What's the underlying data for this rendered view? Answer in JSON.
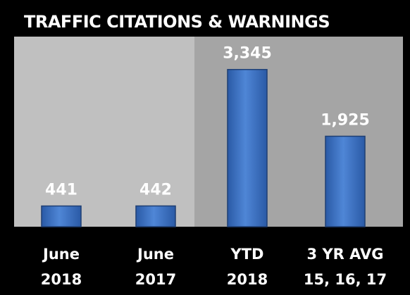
{
  "chart_data": {
    "type": "bar",
    "title": "TRAFFIC CITATIONS & WARNINGS",
    "categories": [
      [
        "June",
        "2018"
      ],
      [
        "June",
        "2017"
      ],
      [
        "YTD",
        "2018"
      ],
      [
        "3 YR AVG",
        "15, 16, 17"
      ]
    ],
    "values": [
      441,
      442,
      3345,
      1925
    ],
    "value_labels": [
      "441",
      "442",
      "3,345",
      "1,925"
    ],
    "color": "#3f74c4",
    "ylim": [
      0,
      4000
    ]
  }
}
